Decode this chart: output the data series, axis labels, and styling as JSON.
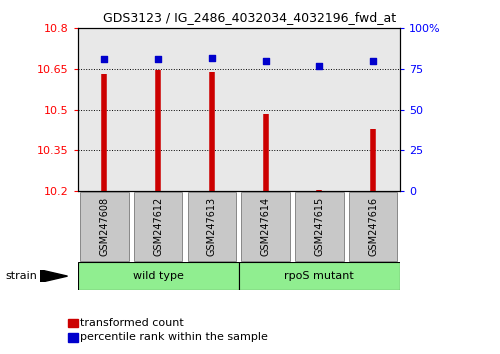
{
  "title": "GDS3123 / IG_2486_4032034_4032196_fwd_at",
  "samples": [
    "GSM247608",
    "GSM247612",
    "GSM247613",
    "GSM247614",
    "GSM247615",
    "GSM247616"
  ],
  "transformed_counts": [
    10.63,
    10.645,
    10.638,
    10.485,
    10.205,
    10.43
  ],
  "percentile_ranks": [
    81,
    81,
    82,
    80,
    77,
    80
  ],
  "groups": [
    {
      "label": "wild type",
      "cols": [
        0,
        1,
        2
      ],
      "color": "#90EE90"
    },
    {
      "label": "rpoS mutant",
      "cols": [
        3,
        4,
        5
      ],
      "color": "#90EE90"
    }
  ],
  "group_label": "strain",
  "ylim_left": [
    10.2,
    10.8
  ],
  "ylim_right": [
    0,
    100
  ],
  "yticks_left": [
    10.2,
    10.35,
    10.5,
    10.65,
    10.8
  ],
  "ytick_labels_left": [
    "10.2",
    "10.35",
    "10.5",
    "10.65",
    "10.8"
  ],
  "yticks_right": [
    0,
    25,
    50,
    75,
    100
  ],
  "ytick_labels_right": [
    "0",
    "25",
    "50",
    "75",
    "100%"
  ],
  "bar_color": "#CC0000",
  "dot_color": "#0000CC",
  "grid_color": "#000000",
  "bg_color": "#ffffff",
  "plot_bg": "#e8e8e8",
  "sample_box_color": "#c8c8c8",
  "legend_items": [
    {
      "label": "transformed count",
      "color": "#CC0000"
    },
    {
      "label": "percentile rank within the sample",
      "color": "#0000CC"
    }
  ]
}
